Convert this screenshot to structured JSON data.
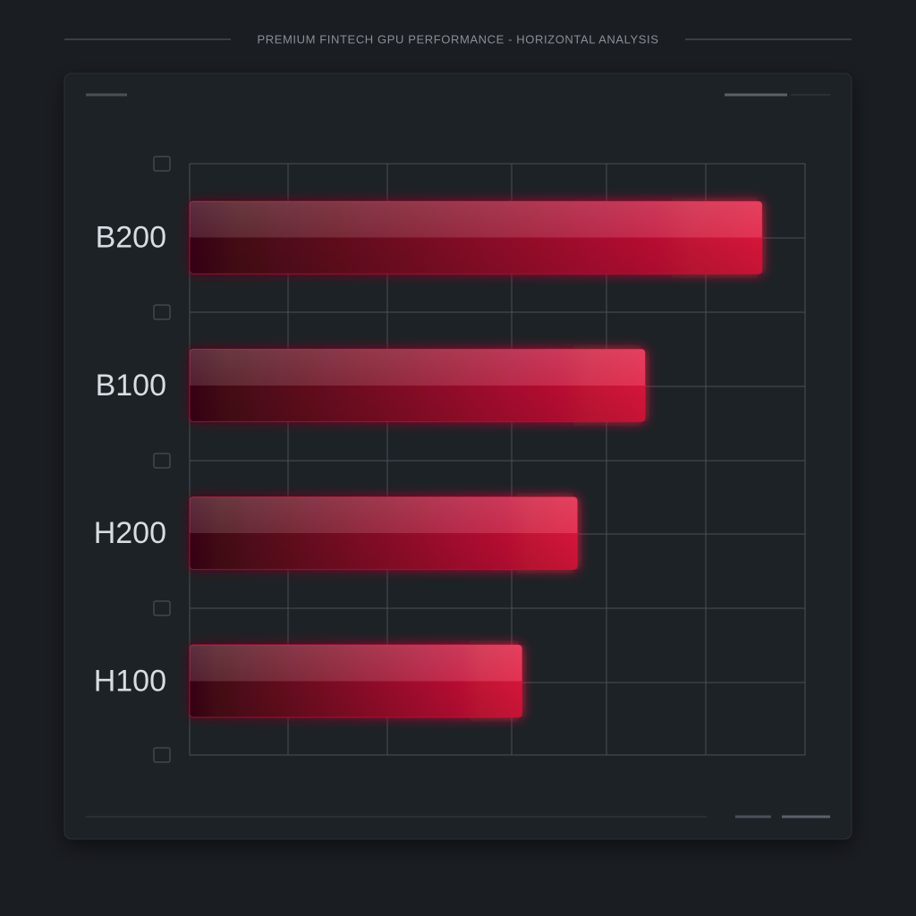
{
  "chart_data": {
    "type": "bar",
    "orientation": "horizontal",
    "title": "PREMIUM FINTECH GPU PERFORMANCE - HORIZONTAL ANALYSIS",
    "categories": [
      "B200",
      "B100",
      "H200",
      "H100"
    ],
    "values": [
      93,
      74,
      63,
      54
    ],
    "color": "#e0143c",
    "xlim": [
      0,
      100
    ],
    "grid": true
  }
}
